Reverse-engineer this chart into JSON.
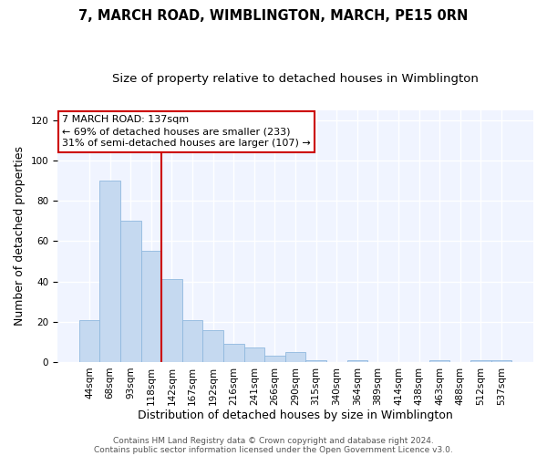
{
  "title": "7, MARCH ROAD, WIMBLINGTON, MARCH, PE15 0RN",
  "subtitle": "Size of property relative to detached houses in Wimblington",
  "xlabel": "Distribution of detached houses by size in Wimblington",
  "ylabel": "Number of detached properties",
  "bar_labels": [
    "44sqm",
    "68sqm",
    "93sqm",
    "118sqm",
    "142sqm",
    "167sqm",
    "192sqm",
    "216sqm",
    "241sqm",
    "266sqm",
    "290sqm",
    "315sqm",
    "340sqm",
    "364sqm",
    "389sqm",
    "414sqm",
    "438sqm",
    "463sqm",
    "488sqm",
    "512sqm",
    "537sqm"
  ],
  "bar_values": [
    21,
    90,
    70,
    55,
    41,
    21,
    16,
    9,
    7,
    3,
    5,
    1,
    0,
    1,
    0,
    0,
    0,
    1,
    0,
    1,
    1
  ],
  "bar_color": "#c5d9f0",
  "bar_edgecolor": "#8fb8de",
  "red_line_index": 4,
  "annotation_text": "7 MARCH ROAD: 137sqm\n← 69% of detached houses are smaller (233)\n31% of semi-detached houses are larger (107) →",
  "annotation_box_edgecolor": "#cc0000",
  "annotation_box_facecolor": "#ffffff",
  "ylim": [
    0,
    125
  ],
  "yticks": [
    0,
    20,
    40,
    60,
    80,
    100,
    120
  ],
  "footer_line1": "Contains HM Land Registry data © Crown copyright and database right 2024.",
  "footer_line2": "Contains public sector information licensed under the Open Government Licence v3.0.",
  "background_color": "#ffffff",
  "plot_background_color": "#f0f4ff",
  "grid_color": "#ffffff",
  "title_fontsize": 10.5,
  "subtitle_fontsize": 9.5,
  "axis_label_fontsize": 9,
  "tick_fontsize": 7.5,
  "footer_fontsize": 6.5,
  "annotation_fontsize": 8
}
